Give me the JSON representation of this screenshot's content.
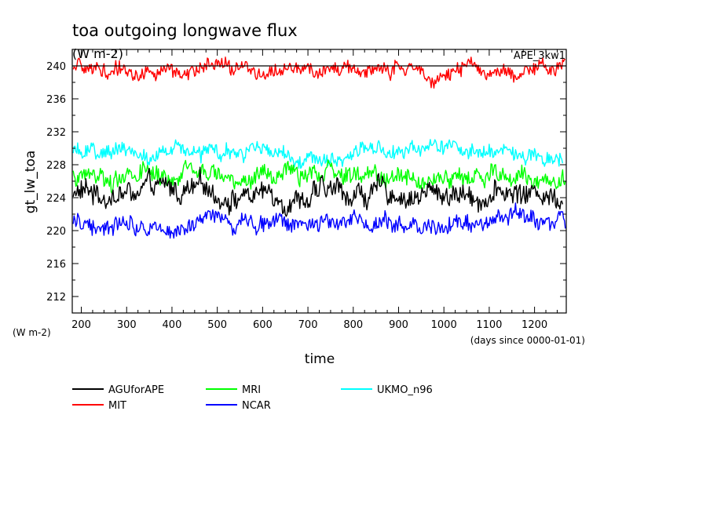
{
  "chart_data": {
    "type": "line",
    "title": "toa outgoing longwave flux",
    "subtitle": "(W m-2)",
    "tag": "APE_3kw1",
    "ylabel": "gt_lw_toa",
    "yunits": "(W m-2)",
    "xlabel": "time",
    "xunits": "(days since 0000-01-01)",
    "xlim": [
      180,
      1270
    ],
    "ylim": [
      210,
      242
    ],
    "xticks": [
      200,
      300,
      400,
      500,
      600,
      700,
      800,
      900,
      1000,
      1100,
      1200
    ],
    "yticks": [
      212,
      216,
      220,
      224,
      228,
      232,
      236,
      240
    ],
    "reference_line": 240,
    "grid": false,
    "legend_position": "bottom",
    "series": [
      {
        "name": "AGUforAPE",
        "color": "#000000",
        "mean": 224.5,
        "amplitude": 1.3,
        "x_start": 182,
        "x_end": 1262,
        "sample_interval": 2
      },
      {
        "name": "MIT",
        "color": "#ff0000",
        "mean": 239.4,
        "amplitude": 0.9,
        "x_start": 182,
        "x_end": 1268,
        "sample_interval": 2
      },
      {
        "name": "MRI",
        "color": "#00ff00",
        "mean": 226.5,
        "amplitude": 1.1,
        "x_start": 182,
        "x_end": 1268,
        "sample_interval": 2
      },
      {
        "name": "NCAR",
        "color": "#0000ff",
        "mean": 221.2,
        "amplitude": 1.0,
        "x_start": 182,
        "x_end": 1268,
        "sample_interval": 2
      },
      {
        "name": "UKMO_n96",
        "color": "#00ffff",
        "mean": 229.3,
        "amplitude": 0.9,
        "x_start": 182,
        "x_end": 1262,
        "sample_interval": 2
      }
    ]
  }
}
